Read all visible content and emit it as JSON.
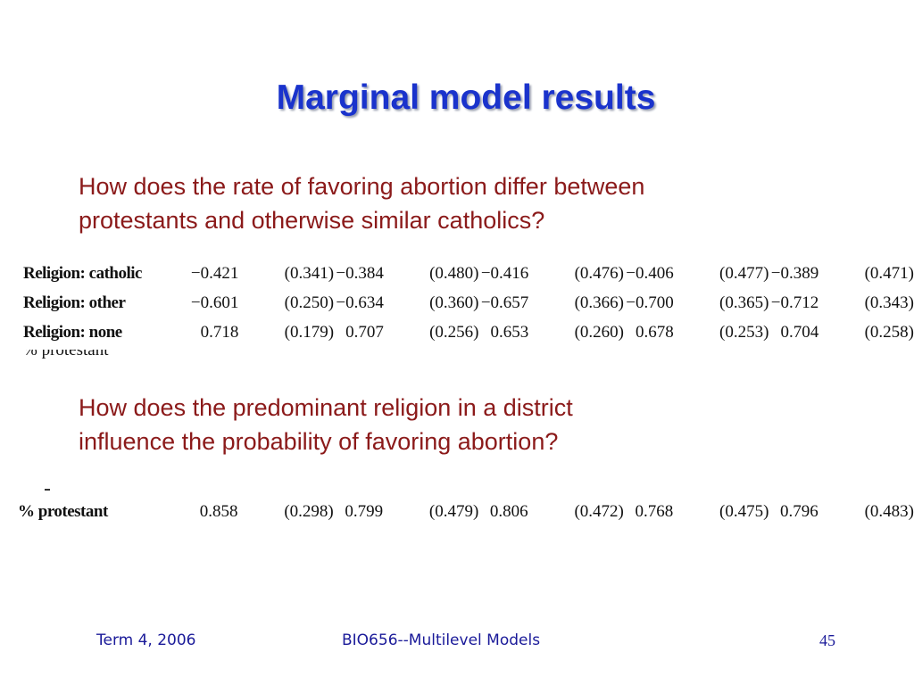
{
  "slide": {
    "title": "Marginal model results",
    "question1": [
      "How does the rate of favoring abortion differ between",
      "protestants and otherwise similar catholics?"
    ],
    "question2": [
      "How does the predominant religion in a district",
      "influence the probability of favoring abortion?"
    ]
  },
  "table1": {
    "rows": [
      {
        "label": "Religion: catholic",
        "values": [
          "−0.421",
          "(0.341)",
          "−0.384",
          "(0.480)",
          "−0.416",
          "(0.476)",
          "−0.406",
          "(0.477)",
          "−0.389",
          "(0.471)"
        ]
      },
      {
        "label": "Religion: other",
        "values": [
          "−0.601",
          "(0.250)",
          "−0.634",
          "(0.360)",
          "−0.657",
          "(0.366)",
          "−0.700",
          "(0.365)",
          "−0.712",
          "(0.343)"
        ]
      },
      {
        "label": "Religion: none",
        "values": [
          "0.718",
          "(0.179)",
          "0.707",
          "(0.256)",
          "0.653",
          "(0.260)",
          "0.678",
          "(0.253)",
          "0.704",
          "(0.258)"
        ]
      }
    ]
  },
  "table2": {
    "rows": [
      {
        "label": "% protestant",
        "values": [
          "0.858",
          "(0.298)",
          "0.799",
          "(0.479)",
          "0.806",
          "(0.472)",
          "0.768",
          "(0.475)",
          "0.796",
          "(0.483)"
        ]
      }
    ]
  },
  "footer": {
    "left": "Term 4, 2006",
    "center": "BIO656--Multilevel Models",
    "page": "45"
  }
}
